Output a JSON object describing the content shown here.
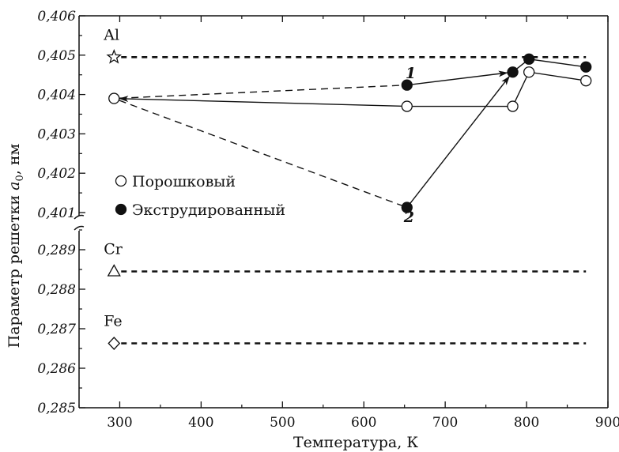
{
  "chart_data": {
    "type": "scatter",
    "xlabel": "Температура, К",
    "ylabel_main": "Параметр решетки ",
    "ylabel_symbol": "a",
    "ylabel_sub": "0",
    "ylabel_unit": ", нм",
    "xlim": [
      250,
      900
    ],
    "x_ticks": [
      "300",
      "400",
      "500",
      "600",
      "700",
      "800",
      "900"
    ],
    "y_upper": {
      "ylim": [
        0.401,
        0.406
      ],
      "ticks": [
        "0,401",
        "0,402",
        "0,403",
        "0,404",
        "0,405",
        "0,406"
      ]
    },
    "y_lower": {
      "ylim": [
        0.285,
        0.2895
      ],
      "ticks": [
        "0,285",
        "0,286",
        "0,287",
        "0,288",
        "0,289"
      ]
    },
    "axis_break": true,
    "grid": false,
    "legend_position": "left, middle",
    "legend": [
      {
        "label": "Порошковый",
        "marker": "open-circle"
      },
      {
        "label": "Экструдированный",
        "marker": "filled-circle"
      }
    ],
    "series": [
      {
        "name": "Порошковый",
        "marker": "open-circle",
        "points": [
          {
            "x": 293,
            "y": 0.4039
          },
          {
            "x": 653,
            "y": 0.4037
          },
          {
            "x": 783,
            "y": 0.4037
          },
          {
            "x": 803,
            "y": 0.40457
          },
          {
            "x": 873,
            "y": 0.40435
          }
        ]
      },
      {
        "name": "Экструдированный",
        "marker": "filled-circle",
        "points": [
          {
            "x": 653,
            "y": 0.40424
          },
          {
            "x": 653,
            "y": 0.40113
          },
          {
            "x": 783,
            "y": 0.40457
          },
          {
            "x": 803,
            "y": 0.4049
          },
          {
            "x": 873,
            "y": 0.4047
          }
        ]
      }
    ],
    "paths": [
      {
        "label": "1",
        "style": "dashed",
        "points": [
          [
            293,
            0.4039
          ],
          [
            653,
            0.40424
          ]
        ]
      },
      {
        "label": "1",
        "style": "solid-arrow",
        "points": [
          [
            653,
            0.40424
          ],
          [
            783,
            0.40457
          ]
        ]
      },
      {
        "label": "2",
        "style": "dashed",
        "points": [
          [
            293,
            0.4039
          ],
          [
            653,
            0.40113
          ]
        ]
      },
      {
        "label": "2",
        "style": "solid-arrow",
        "points": [
          [
            653,
            0.40113
          ],
          [
            783,
            0.40457
          ]
        ]
      },
      {
        "label": "",
        "style": "solid-arrow-back",
        "points": [
          [
            653,
            0.4037
          ],
          [
            293,
            0.4039
          ]
        ]
      },
      {
        "label": "",
        "style": "solid",
        "points": [
          [
            653,
            0.4037
          ],
          [
            783,
            0.4037
          ],
          [
            803,
            0.40457
          ],
          [
            873,
            0.40435
          ]
        ]
      },
      {
        "label": "",
        "style": "solid",
        "points": [
          [
            783,
            0.40457
          ],
          [
            803,
            0.4049
          ],
          [
            873,
            0.4047
          ]
        ]
      }
    ],
    "reference_lines": [
      {
        "element": "Al",
        "marker": "open-star",
        "y": 0.40495,
        "x_start": 293,
        "x_end": 873,
        "panel": "upper"
      },
      {
        "element": "Cr",
        "marker": "open-triangle",
        "y": 0.28845,
        "x_start": 293,
        "x_end": 873,
        "panel": "lower"
      },
      {
        "element": "Fe",
        "marker": "open-diamond",
        "y": 0.28663,
        "x_start": 293,
        "x_end": 873,
        "panel": "lower"
      }
    ],
    "series_numbers": [
      {
        "text": "1",
        "x": 655,
        "y": 0.40453
      },
      {
        "text": "2",
        "x": 653,
        "y": 0.40088
      }
    ]
  }
}
